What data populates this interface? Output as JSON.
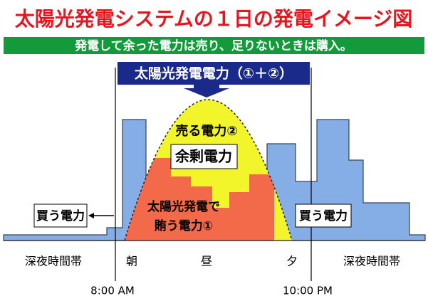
{
  "title": "太陽光発電システムの１日の発電イメージ図",
  "banner": "発電して余った電力は売り、足りないときは購入。",
  "header": "太陽光発電電力（①＋②）",
  "labels": {
    "sell": "売る電力②",
    "surplus": "余剰電力",
    "solar_line1": "太陽光発電で",
    "solar_line2": "賄う電力①",
    "buy_left": "買う電力",
    "buy_right": "買う電力"
  },
  "periods": [
    "深夜時間帯",
    "朝",
    "昼",
    "夕",
    "深夜時間帯"
  ],
  "times": [
    "8:00 AM",
    "10:00 PM"
  ]
}
